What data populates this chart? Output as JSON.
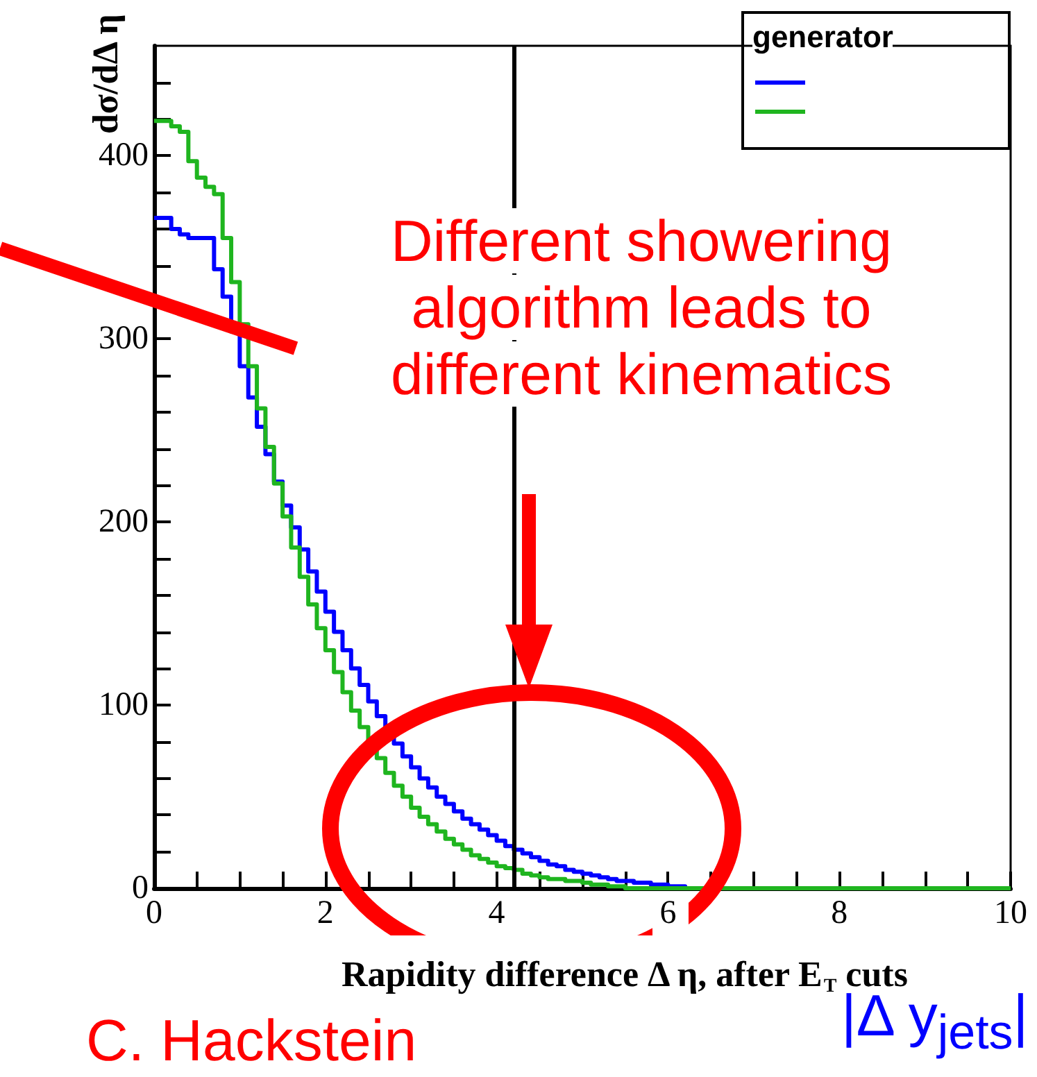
{
  "chart_data": {
    "type": "histogram",
    "xlabel": "Rapidity difference Δ η, after E$_{T}$ cuts",
    "ylabel": "dσ/dΔ η",
    "legend_title": "generator",
    "bins": [
      0,
      0.1,
      0.2,
      0.3,
      0.4,
      0.5,
      0.6,
      0.7,
      0.8,
      0.9,
      1,
      1.1,
      1.2,
      1.3,
      1.4,
      1.5,
      1.6,
      1.7,
      1.8,
      1.9,
      2,
      2.1,
      2.2,
      2.3,
      2.4,
      2.5,
      2.6,
      2.7,
      2.8,
      2.9,
      3,
      3.1,
      3.2,
      3.3,
      3.4,
      3.5,
      3.6,
      3.7,
      3.8,
      3.9,
      4,
      4.1,
      4.2,
      4.3,
      4.4,
      4.5,
      4.6,
      4.7,
      4.8,
      4.9,
      5,
      5.1,
      5.2,
      5.3,
      5.4,
      5.5,
      5.6,
      5.7,
      5.8,
      5.9,
      6,
      6.1,
      6.2,
      6.3,
      6.4,
      6.5,
      6.6,
      6.7,
      6.8,
      6.9,
      7,
      7.1,
      7.2,
      7.3,
      7.4,
      7.5,
      7.6,
      7.7,
      7.8,
      7.9,
      8,
      8.1,
      8.2,
      8.3,
      8.4,
      8.5,
      8.6,
      8.7,
      8.8,
      8.9,
      9,
      9.1,
      9.2,
      9.3,
      9.4,
      9.5,
      9.6,
      9.7,
      9.8,
      9.9,
      10
    ],
    "series": [
      {
        "color": "#0000ff",
        "values": [
          366,
          366,
          360,
          357,
          355,
          355,
          355,
          338,
          323,
          304,
          285,
          268,
          252,
          237,
          222,
          209,
          197,
          185,
          173,
          162,
          151,
          140,
          130,
          120,
          111,
          102,
          94,
          86,
          79,
          72,
          66,
          60,
          55,
          50,
          46,
          42,
          38,
          35,
          32,
          29,
          26,
          23,
          21,
          19,
          17,
          15,
          13,
          12,
          10,
          9,
          8,
          7,
          6,
          5,
          4,
          4,
          3,
          3,
          2,
          2,
          1,
          1,
          0,
          0,
          0,
          0,
          0,
          0,
          0,
          0,
          0,
          0,
          0,
          0,
          0,
          0,
          0,
          0,
          0,
          0,
          0,
          0,
          0,
          0,
          0,
          0,
          0,
          0,
          0,
          0,
          0,
          0,
          0,
          0,
          0,
          0,
          0,
          0,
          0,
          0
        ]
      },
      {
        "color": "#1fb51f",
        "values": [
          419,
          419,
          416,
          413,
          397,
          388,
          383,
          379,
          355,
          331,
          308,
          285,
          262,
          241,
          221,
          203,
          186,
          170,
          155,
          142,
          130,
          118,
          107,
          97,
          88,
          80,
          71,
          63,
          56,
          50,
          44,
          39,
          35,
          31,
          27,
          24,
          21,
          18,
          16,
          14,
          12,
          11,
          10,
          8,
          7,
          6,
          5,
          5,
          4,
          4,
          3,
          2,
          2,
          1,
          1,
          0,
          0,
          0,
          0,
          0,
          0,
          0,
          0,
          0,
          0,
          0,
          0,
          0,
          0,
          0,
          0,
          0,
          0,
          0,
          0,
          0,
          0,
          0,
          0,
          0,
          0,
          0,
          0,
          0,
          0,
          0,
          0,
          0,
          0,
          0,
          0,
          0,
          0,
          0,
          0,
          0,
          0,
          0,
          0,
          0
        ]
      }
    ],
    "xlim": [
      0,
      10
    ],
    "xticks": [
      0,
      {
        "value": 0.5,
        "label": null
      },
      {
        "value": 1,
        "label": null
      },
      {
        "value": 1.5,
        "label": null
      },
      2,
      {
        "value": 2.5,
        "label": null
      },
      {
        "value": 3,
        "label": null
      },
      {
        "value": 3.5,
        "label": null
      },
      4,
      {
        "value": 4.5,
        "label": null
      },
      {
        "value": 5,
        "label": null
      },
      {
        "value": 5.5,
        "label": null
      },
      6,
      {
        "value": 6.5,
        "label": null
      },
      {
        "value": 7,
        "label": null
      },
      {
        "value": 7.5,
        "label": null
      },
      8,
      {
        "value": 8.5,
        "label": null
      },
      {
        "value": 9,
        "label": null
      },
      {
        "value": 9.5,
        "label": null
      },
      10
    ],
    "ylim": [
      0,
      460
    ],
    "yticks": [
      0,
      {
        "value": 20,
        "label": null
      },
      {
        "value": 40,
        "label": null
      },
      {
        "value": 60,
        "label": null
      },
      {
        "value": 80,
        "label": null
      },
      100,
      {
        "value": 120,
        "label": null
      },
      {
        "value": 140,
        "label": null
      },
      {
        "value": 160,
        "label": null
      },
      {
        "value": 180,
        "label": null
      },
      200,
      {
        "value": 220,
        "label": null
      },
      {
        "value": 240,
        "label": null
      },
      {
        "value": 260,
        "label": null
      },
      {
        "value": 280,
        "label": null
      },
      300,
      {
        "value": 320,
        "label": null
      },
      {
        "value": 340,
        "label": null
      },
      {
        "value": 360,
        "label": null
      },
      {
        "value": 380,
        "label": null
      },
      400,
      {
        "value": 420,
        "label": null
      },
      {
        "value": 440,
        "label": null
      }
    ],
    "ref_lines": [
      {
        "axis": "x",
        "value": 4.2,
        "color": "#000000"
      }
    ],
    "annotations": [
      "Different showering algorithm leads to different kinematics",
      "|Δ y$_{jets}$|",
      "C. Hackstein"
    ]
  }
}
